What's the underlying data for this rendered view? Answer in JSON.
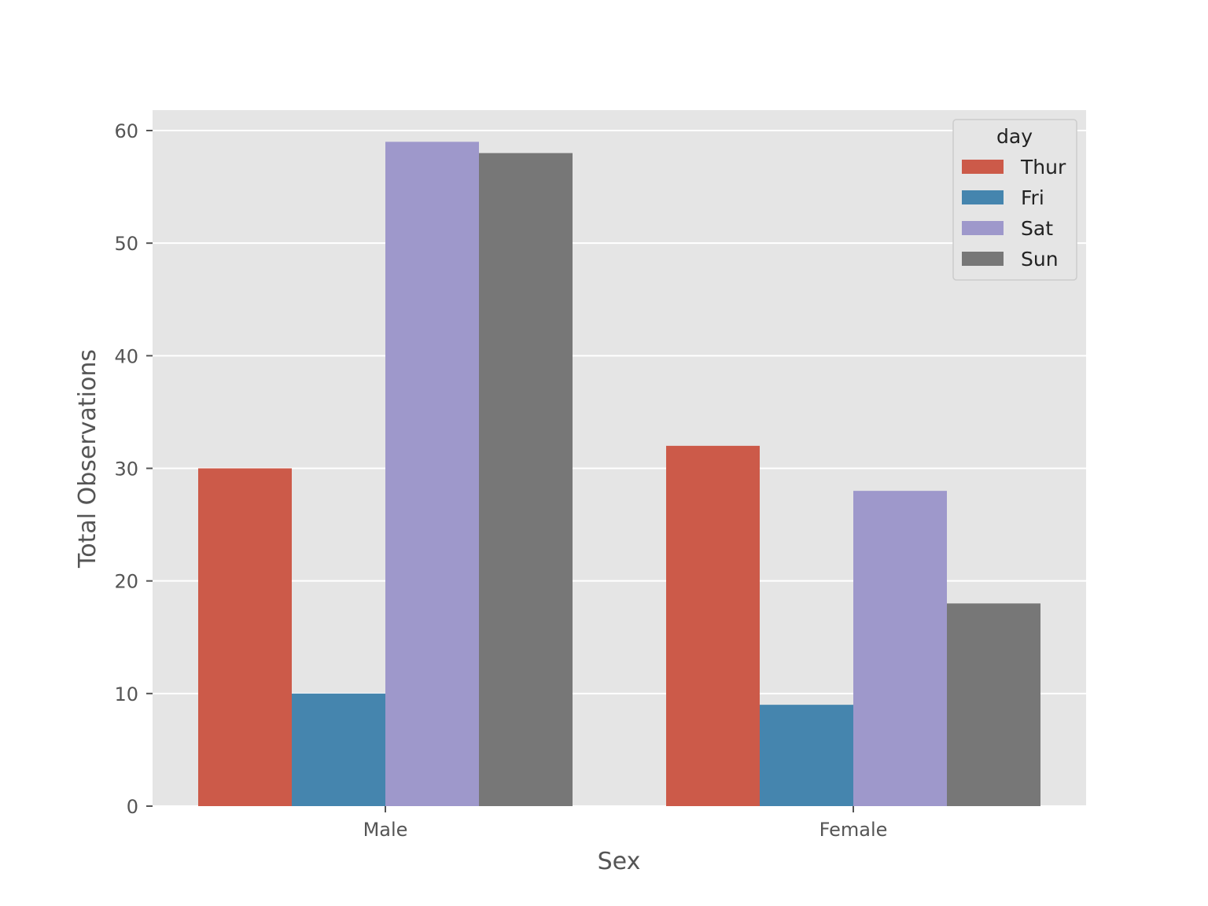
{
  "chart_data": {
    "type": "bar",
    "title": "",
    "xlabel": "Sex",
    "ylabel": "Total Observations",
    "categories": [
      "Male",
      "Female"
    ],
    "series": [
      {
        "name": "Thur",
        "color": "#cc5a49",
        "values": [
          30,
          32
        ]
      },
      {
        "name": "Fri",
        "color": "#4585ae",
        "values": [
          10,
          9
        ]
      },
      {
        "name": "Sat",
        "color": "#9e98cb",
        "values": [
          59,
          28
        ]
      },
      {
        "name": "Sun",
        "color": "#777777",
        "values": [
          58,
          18
        ]
      }
    ],
    "ylim": [
      0,
      62
    ],
    "yticks": [
      0,
      10,
      20,
      30,
      40,
      50,
      60
    ],
    "grid": true,
    "legend": {
      "title": "day",
      "placement": "top-right"
    },
    "background_color": "#e5e5e5",
    "grid_color": "#ffffff"
  }
}
